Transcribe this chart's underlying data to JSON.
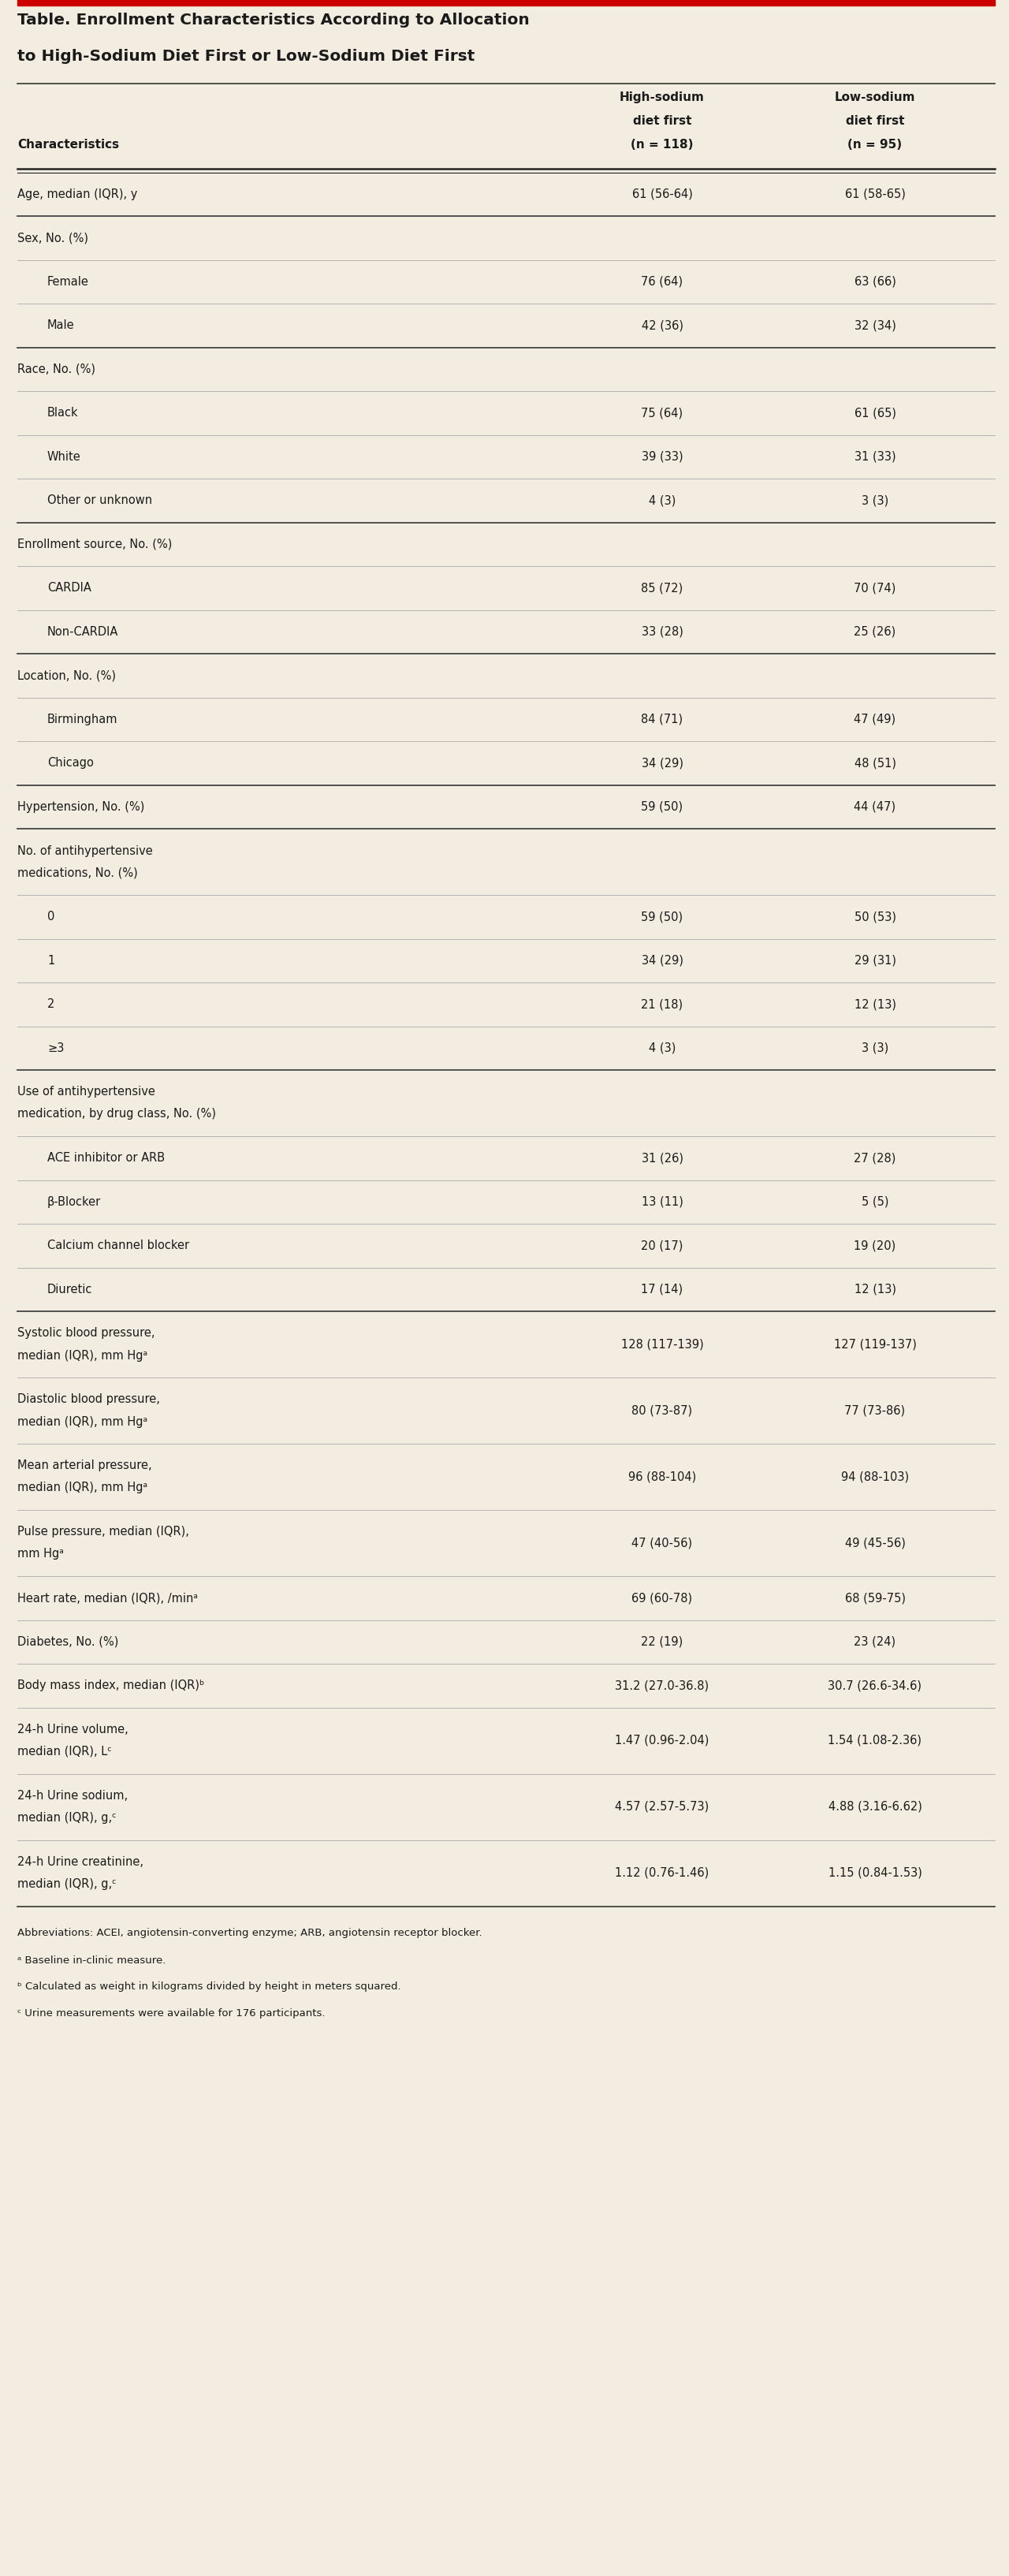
{
  "title_line1": "Table. Enrollment Characteristics According to Allocation",
  "title_line2": "to High-Sodium Diet First or Low-Sodium Diet First",
  "col1_header": [
    "High-sodium",
    "diet first",
    "(n = 118)"
  ],
  "col2_header": [
    "Low-sodium",
    "diet first",
    "(n = 95)"
  ],
  "col_char": "Characteristics",
  "bg_color": "#f2ede0",
  "title_color": "#1a1a1a",
  "text_color": "#1a1a1a",
  "top_bar_color": "#cc0000",
  "rows": [
    {
      "label": "Age, median (IQR), y",
      "indent": 0,
      "col1": "61 (56-64)",
      "col2": "61 (58-65)",
      "section_header": false,
      "thick_above": true,
      "double_line": false
    },
    {
      "label": "Sex, No. (%)",
      "indent": 0,
      "col1": "",
      "col2": "",
      "section_header": true,
      "thick_above": true,
      "double_line": false
    },
    {
      "label": "Female",
      "indent": 1,
      "col1": "76 (64)",
      "col2": "63 (66)",
      "section_header": false,
      "thick_above": false,
      "double_line": false
    },
    {
      "label": "Male",
      "indent": 1,
      "col1": "42 (36)",
      "col2": "32 (34)",
      "section_header": false,
      "thick_above": false,
      "double_line": false
    },
    {
      "label": "Race, No. (%)",
      "indent": 0,
      "col1": "",
      "col2": "",
      "section_header": true,
      "thick_above": true,
      "double_line": false
    },
    {
      "label": "Black",
      "indent": 1,
      "col1": "75 (64)",
      "col2": "61 (65)",
      "section_header": false,
      "thick_above": false,
      "double_line": false
    },
    {
      "label": "White",
      "indent": 1,
      "col1": "39 (33)",
      "col2": "31 (33)",
      "section_header": false,
      "thick_above": false,
      "double_line": false
    },
    {
      "label": "Other or unknown",
      "indent": 1,
      "col1": "4 (3)",
      "col2": "3 (3)",
      "section_header": false,
      "thick_above": false,
      "double_line": false
    },
    {
      "label": "Enrollment source, No. (%)",
      "indent": 0,
      "col1": "",
      "col2": "",
      "section_header": true,
      "thick_above": true,
      "double_line": false
    },
    {
      "label": "CARDIA",
      "indent": 1,
      "col1": "85 (72)",
      "col2": "70 (74)",
      "section_header": false,
      "thick_above": false,
      "double_line": false
    },
    {
      "label": "Non-CARDIA",
      "indent": 1,
      "col1": "33 (28)",
      "col2": "25 (26)",
      "section_header": false,
      "thick_above": false,
      "double_line": false
    },
    {
      "label": "Location, No. (%)",
      "indent": 0,
      "col1": "",
      "col2": "",
      "section_header": true,
      "thick_above": true,
      "double_line": false
    },
    {
      "label": "Birmingham",
      "indent": 1,
      "col1": "84 (71)",
      "col2": "47 (49)",
      "section_header": false,
      "thick_above": false,
      "double_line": false
    },
    {
      "label": "Chicago",
      "indent": 1,
      "col1": "34 (29)",
      "col2": "48 (51)",
      "section_header": false,
      "thick_above": false,
      "double_line": false
    },
    {
      "label": "Hypertension, No. (%)",
      "indent": 0,
      "col1": "59 (50)",
      "col2": "44 (47)",
      "section_header": false,
      "thick_above": true,
      "double_line": false
    },
    {
      "label": "No. of antihypertensive\nmedications, No. (%)",
      "indent": 0,
      "col1": "",
      "col2": "",
      "section_header": true,
      "thick_above": true,
      "double_line": true
    },
    {
      "label": "0",
      "indent": 1,
      "col1": "59 (50)",
      "col2": "50 (53)",
      "section_header": false,
      "thick_above": false,
      "double_line": false
    },
    {
      "label": "1",
      "indent": 1,
      "col1": "34 (29)",
      "col2": "29 (31)",
      "section_header": false,
      "thick_above": false,
      "double_line": false
    },
    {
      "label": "2",
      "indent": 1,
      "col1": "21 (18)",
      "col2": "12 (13)",
      "section_header": false,
      "thick_above": false,
      "double_line": false
    },
    {
      "label": "≥3",
      "indent": 1,
      "col1": "4 (3)",
      "col2": "3 (3)",
      "section_header": false,
      "thick_above": false,
      "double_line": false
    },
    {
      "label": "Use of antihypertensive\nmedication, by drug class, No. (%)",
      "indent": 0,
      "col1": "",
      "col2": "",
      "section_header": true,
      "thick_above": true,
      "double_line": true
    },
    {
      "label": "ACE inhibitor or ARB",
      "indent": 1,
      "col1": "31 (26)",
      "col2": "27 (28)",
      "section_header": false,
      "thick_above": false,
      "double_line": false
    },
    {
      "label": "β-Blocker",
      "indent": 1,
      "col1": "13 (11)",
      "col2": "5 (5)",
      "section_header": false,
      "thick_above": false,
      "double_line": false
    },
    {
      "label": "Calcium channel blocker",
      "indent": 1,
      "col1": "20 (17)",
      "col2": "19 (20)",
      "section_header": false,
      "thick_above": false,
      "double_line": false
    },
    {
      "label": "Diuretic",
      "indent": 1,
      "col1": "17 (14)",
      "col2": "12 (13)",
      "section_header": false,
      "thick_above": false,
      "double_line": false
    },
    {
      "label": "Systolic blood pressure,\nmedian (IQR), mm Hgᵃ",
      "indent": 0,
      "col1": "128 (117-139)",
      "col2": "127 (119-137)",
      "section_header": false,
      "thick_above": true,
      "double_line": true
    },
    {
      "label": "Diastolic blood pressure,\nmedian (IQR), mm Hgᵃ",
      "indent": 0,
      "col1": "80 (73-87)",
      "col2": "77 (73-86)",
      "section_header": false,
      "thick_above": false,
      "double_line": true
    },
    {
      "label": "Mean arterial pressure,\nmedian (IQR), mm Hgᵃ",
      "indent": 0,
      "col1": "96 (88-104)",
      "col2": "94 (88-103)",
      "section_header": false,
      "thick_above": false,
      "double_line": true
    },
    {
      "label": "Pulse pressure, median (IQR),\nmm Hgᵃ",
      "indent": 0,
      "col1": "47 (40-56)",
      "col2": "49 (45-56)",
      "section_header": false,
      "thick_above": false,
      "double_line": true
    },
    {
      "label": "Heart rate, median (IQR), /minᵃ",
      "indent": 0,
      "col1": "69 (60-78)",
      "col2": "68 (59-75)",
      "section_header": false,
      "thick_above": false,
      "double_line": false
    },
    {
      "label": "Diabetes, No. (%)",
      "indent": 0,
      "col1": "22 (19)",
      "col2": "23 (24)",
      "section_header": false,
      "thick_above": false,
      "double_line": false
    },
    {
      "label": "Body mass index, median (IQR)ᵇ",
      "indent": 0,
      "col1": "31.2 (27.0-36.8)",
      "col2": "30.7 (26.6-34.6)",
      "section_header": false,
      "thick_above": false,
      "double_line": false
    },
    {
      "label": "24-h Urine volume,\nmedian (IQR), Lᶜ",
      "indent": 0,
      "col1": "1.47 (0.96-2.04)",
      "col2": "1.54 (1.08-2.36)",
      "section_header": false,
      "thick_above": false,
      "double_line": true
    },
    {
      "label": "24-h Urine sodium,\nmedian (IQR), g,ᶜ",
      "indent": 0,
      "col1": "4.57 (2.57-5.73)",
      "col2": "4.88 (3.16-6.62)",
      "section_header": false,
      "thick_above": false,
      "double_line": true
    },
    {
      "label": "24-h Urine creatinine,\nmedian (IQR), g,ᶜ",
      "indent": 0,
      "col1": "1.12 (0.76-1.46)",
      "col2": "1.15 (0.84-1.53)",
      "section_header": false,
      "thick_above": false,
      "double_line": true
    }
  ],
  "footnotes": [
    "Abbreviations: ACEI, angiotensin-converting enzyme; ARB, angiotensin receptor blocker.",
    "ᵃ Baseline in-clinic measure.",
    "ᵇ Calculated as weight in kilograms divided by height in meters squared.",
    "ᶜ Urine measurements were available for 176 participants."
  ]
}
